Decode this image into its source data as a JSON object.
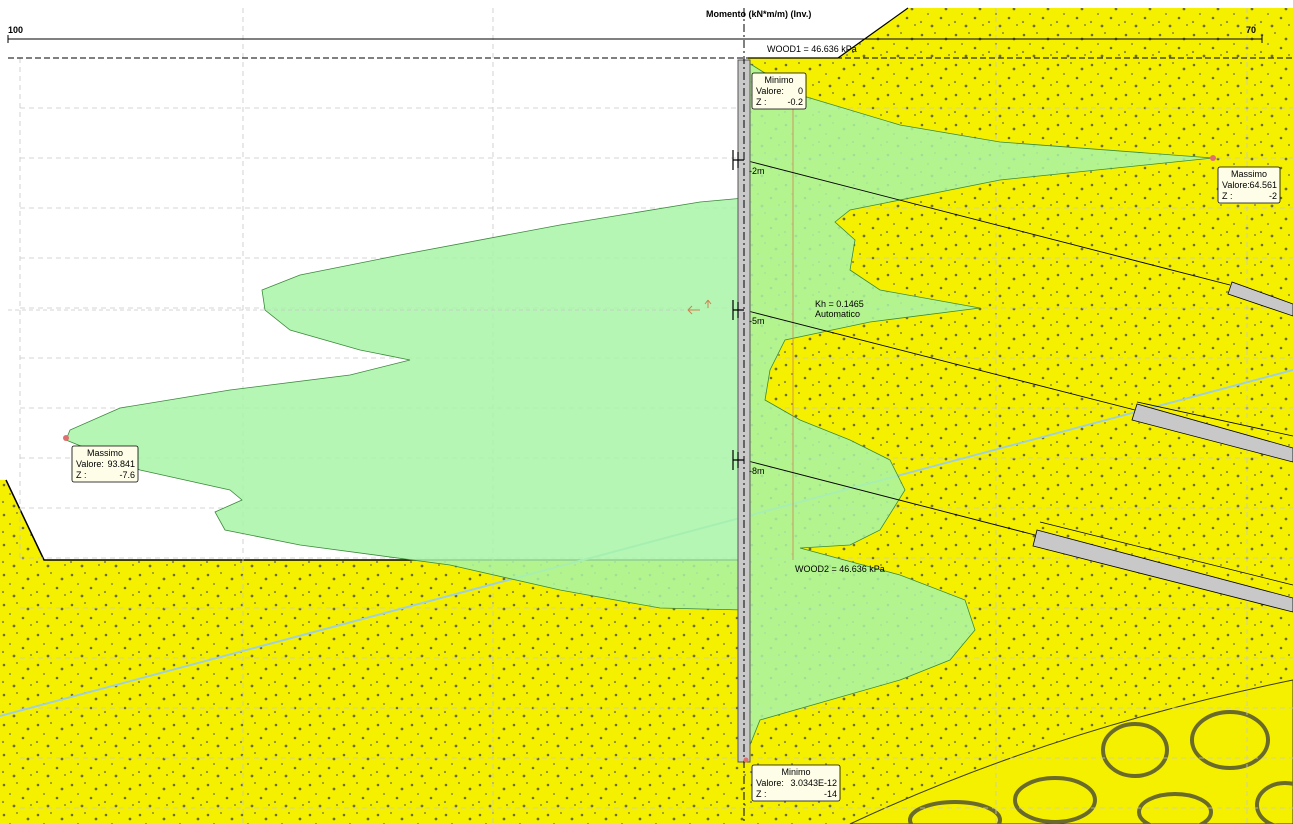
{
  "diagram": {
    "title": "Momento (kN*m/m) (Inv.)",
    "scale_left": "100",
    "scale_right": "70",
    "wood1_label": "WOOD1 = 46.636 kPa",
    "wood2_label": "WOOD2 = 46.636 kPa",
    "kh_label": "Kh = 0.1465",
    "kh_mode": "Automatico",
    "colors": {
      "soil": "#f5f000",
      "soil_dots": "#6b6b3a",
      "moment_fill": "#a8f5a8",
      "wall": "#c9c9c9",
      "anchor": "#c8c8c8",
      "water_line": "#9fd0e0",
      "grid": "#c8c8c8",
      "box_fill": "#fdfde8"
    },
    "anchors": [
      {
        "label": "-2m"
      },
      {
        "label": "-5m"
      },
      {
        "label": "-8m"
      }
    ],
    "annotations": {
      "min_top": {
        "title": "Minimo",
        "valore_label": "Valore:",
        "valore": "0",
        "z_label": "Z :",
        "z": "-0.2"
      },
      "max_right": {
        "title": "Massimo",
        "valore_label": "Valore:",
        "valore": "64.561",
        "z_label": "Z :",
        "z": "-2"
      },
      "max_left": {
        "title": "Massimo",
        "valore_label": "Valore:",
        "valore": "93.841",
        "z_label": "Z :",
        "z": "-7.6"
      },
      "min_bottom": {
        "title": "Minimo",
        "valore_label": "Valore:",
        "valore": "3.0343E-12",
        "z_label": "Z :",
        "z": "-14"
      }
    }
  }
}
